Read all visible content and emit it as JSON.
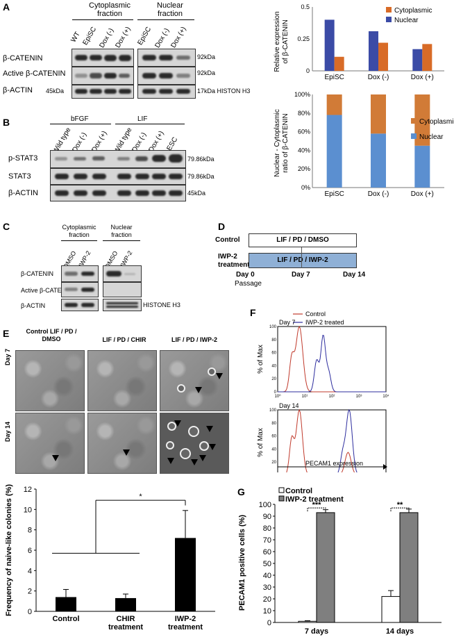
{
  "panels": {
    "A": "A",
    "B": "B",
    "C": "C",
    "D": "D",
    "E": "E",
    "F": "F",
    "G": "G"
  },
  "panelA": {
    "group_cyto": "Cytoplasmic fraction",
    "group_nuc": "Nuclear fraction",
    "lanes_cyto": [
      "WT",
      "EpiSC",
      "Dox (-)",
      "Dox (+)"
    ],
    "lanes_nuc": [
      "EpiSC",
      "Dox (-)",
      "Dox (+)"
    ],
    "rows": [
      "β-CATENIN",
      "Active β-CATENIN",
      "β-ACTIN"
    ],
    "left_mw": "45kDa",
    "right_labels": [
      "92kDa",
      "92kDa",
      "17kDa HISTON H3"
    ]
  },
  "panelB": {
    "groups": [
      "bFGF",
      "LIF"
    ],
    "lanes": [
      "Wild type",
      "Dox (-)",
      "Dox (+)",
      "Wild type",
      "Dox (-)",
      "Dox (+)",
      "ESC"
    ],
    "rows": [
      "p-STAT3",
      "STAT3",
      "β-ACTIN"
    ],
    "right_labels": [
      "79.86kDa",
      "79.86kDa",
      "45kDa"
    ]
  },
  "panelC": {
    "group_cyto": "Cytoplasmic fraction",
    "group_nuc": "Nuclear fraction",
    "lanes": [
      "DMSO",
      "IWP-2",
      "DMSO",
      "IWP-2"
    ],
    "rows": [
      "β-CATENIN",
      "Active β-CATENIN",
      "β-ACTIN"
    ],
    "right_label": "HISTONE H3"
  },
  "panelD": {
    "row1_label": "Control",
    "row1_text": "LIF / PD / DMSO",
    "row2_label": "IWP-2 treatment",
    "row2_text": "LIF / PD / IWP-2",
    "ticks": [
      "Day 0",
      "Day 7",
      "Day 14"
    ],
    "passage": "Passage"
  },
  "panelE": {
    "col_titles": [
      "Control LIF / PD / DMSO",
      "LIF / PD / CHIR",
      "LIF / PD / IWP-2"
    ],
    "row_labels": [
      "Day 7",
      "Day 14"
    ]
  },
  "panelF": {
    "legend": [
      "Control",
      "IWP-2 treated"
    ],
    "titles": [
      "Day 7",
      "Day 14"
    ],
    "ylabel": "% of Max",
    "xlabel": "PECAM1 expression",
    "yticks": [
      "0",
      "20",
      "40",
      "60",
      "80",
      "100"
    ],
    "xticks": [
      "10⁰",
      "10¹",
      "10²",
      "10³",
      "10⁴"
    ],
    "colors": {
      "control": "#c0392b",
      "treated": "#2c2c9e"
    }
  },
  "chart_data": [
    {
      "type": "bar",
      "id": "A-top",
      "ylabel": "Relative expression of β-CATENIN",
      "categories": [
        "EpiSC",
        "Dox (-)",
        "Dox (+)"
      ],
      "series": [
        {
          "name": "Nuclear",
          "values": [
            0.4,
            0.31,
            0.17
          ],
          "color": "#3b4ba6"
        },
        {
          "name": "Cytoplasmic",
          "values": [
            0.11,
            0.22,
            0.21
          ],
          "color": "#d86b27"
        }
      ],
      "ylim": [
        0,
        0.5
      ],
      "yticks": [
        "0",
        "0.25",
        "0.5"
      ],
      "legend": [
        "Cytoplasmic",
        "Nuclear"
      ]
    },
    {
      "type": "bar",
      "id": "A-bottom",
      "ylabel": "Nuclear - Cytoplasmic ratio of β-CATENIN",
      "categories": [
        "EpiSC",
        "Dox (-)",
        "Dox (+)"
      ],
      "series": [
        {
          "name": "Nuclear",
          "values": [
            78,
            58,
            45
          ],
          "color": "#5b8fd0"
        },
        {
          "name": "Cytoplasmic",
          "values": [
            22,
            42,
            55
          ],
          "color": "#d17b37"
        }
      ],
      "ylim": [
        0,
        100
      ],
      "yticks": [
        "0%",
        "20%",
        "40%",
        "60%",
        "80%",
        "100%"
      ],
      "legend": [
        "Cytoplasmic",
        "Nuclear"
      ]
    },
    {
      "type": "bar",
      "id": "E-bar",
      "ylabel": "Frequency of naive-like colonies (%)",
      "categories": [
        "Control",
        "CHIR treatment",
        "IWP-2 treatment"
      ],
      "values": [
        1.4,
        1.3,
        7.2
      ],
      "errors": [
        0.75,
        0.4,
        2.7
      ],
      "ylim": [
        0,
        12
      ],
      "yticks": [
        "0",
        "2",
        "4",
        "6",
        "8",
        "10",
        "12"
      ],
      "significance": "*"
    },
    {
      "type": "bar",
      "id": "G",
      "ylabel": "PECAM1 positive cells (%)",
      "categories": [
        "7 days",
        "14 days"
      ],
      "series": [
        {
          "name": "Control",
          "values": [
            1,
            22
          ],
          "errors": [
            0.5,
            5
          ],
          "color": "#ffffff"
        },
        {
          "name": "IWP-2 treatment",
          "values": [
            93,
            93
          ],
          "errors": [
            2.5,
            3
          ],
          "color": "#7f7f7f"
        }
      ],
      "ylim": [
        0,
        100
      ],
      "yticks": [
        "0",
        "10",
        "20",
        "30",
        "40",
        "50",
        "60",
        "70",
        "80",
        "90",
        "100"
      ],
      "significance": [
        "***",
        "**"
      ]
    }
  ]
}
